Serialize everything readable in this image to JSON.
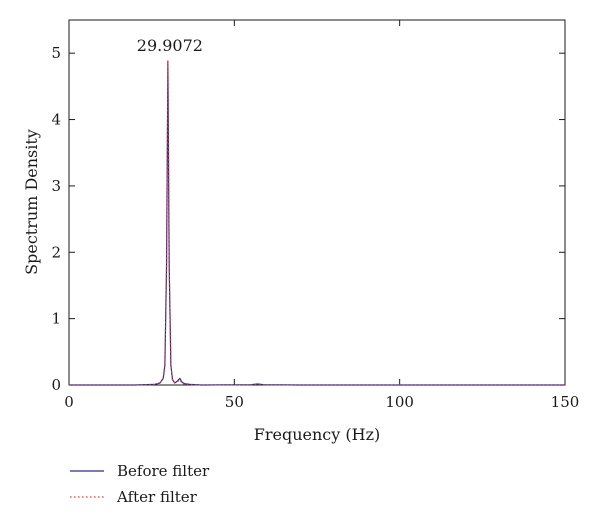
{
  "chart_data": {
    "type": "line",
    "title": "",
    "xlabel": "Frequency (Hz)",
    "ylabel": "Spectrum Density",
    "xlim": [
      0,
      150
    ],
    "ylim": [
      0,
      5.5
    ],
    "xticks": [
      0,
      50,
      100,
      150
    ],
    "yticks": [
      0,
      1,
      2,
      3,
      4,
      5
    ],
    "grid": false,
    "legend_position": "bottom-left, below plot",
    "annotations": [
      {
        "text": "29.9072",
        "x": 29.9072,
        "y": 4.88
      }
    ],
    "series": [
      {
        "name": "Before filter",
        "color": "#2b2b8c",
        "style": "solid",
        "points": [
          [
            0,
            0
          ],
          [
            10,
            0
          ],
          [
            20,
            0
          ],
          [
            26,
            0.01
          ],
          [
            27.5,
            0.03
          ],
          [
            28.5,
            0.1
          ],
          [
            29,
            0.3
          ],
          [
            29.5,
            1.8
          ],
          [
            29.9072,
            4.88
          ],
          [
            30.3,
            1.8
          ],
          [
            30.8,
            0.3
          ],
          [
            31.3,
            0.08
          ],
          [
            32,
            0.03
          ],
          [
            32.8,
            0.06
          ],
          [
            33.5,
            0.1
          ],
          [
            34.2,
            0.04
          ],
          [
            35,
            0.02
          ],
          [
            36.5,
            0.01
          ],
          [
            40,
            0
          ],
          [
            55,
            0.005
          ],
          [
            57,
            0.015
          ],
          [
            59,
            0.005
          ],
          [
            70,
            0
          ],
          [
            100,
            0
          ],
          [
            150,
            0
          ]
        ]
      },
      {
        "name": "After filter",
        "color": "#e03a2a",
        "style": "dotted",
        "points": [
          [
            0,
            0
          ],
          [
            10,
            0
          ],
          [
            20,
            0
          ],
          [
            26,
            0.01
          ],
          [
            27.5,
            0.03
          ],
          [
            28.5,
            0.1
          ],
          [
            29,
            0.3
          ],
          [
            29.5,
            1.8
          ],
          [
            29.9072,
            4.88
          ],
          [
            30.3,
            1.8
          ],
          [
            30.8,
            0.3
          ],
          [
            31.3,
            0.08
          ],
          [
            32,
            0.03
          ],
          [
            32.8,
            0.05
          ],
          [
            33.5,
            0.08
          ],
          [
            34.2,
            0.03
          ],
          [
            35,
            0.01
          ],
          [
            36.5,
            0.005
          ],
          [
            40,
            0
          ],
          [
            55,
            0.003
          ],
          [
            57,
            0.01
          ],
          [
            59,
            0.003
          ],
          [
            70,
            0
          ],
          [
            100,
            0
          ],
          [
            150,
            0
          ]
        ]
      }
    ]
  }
}
